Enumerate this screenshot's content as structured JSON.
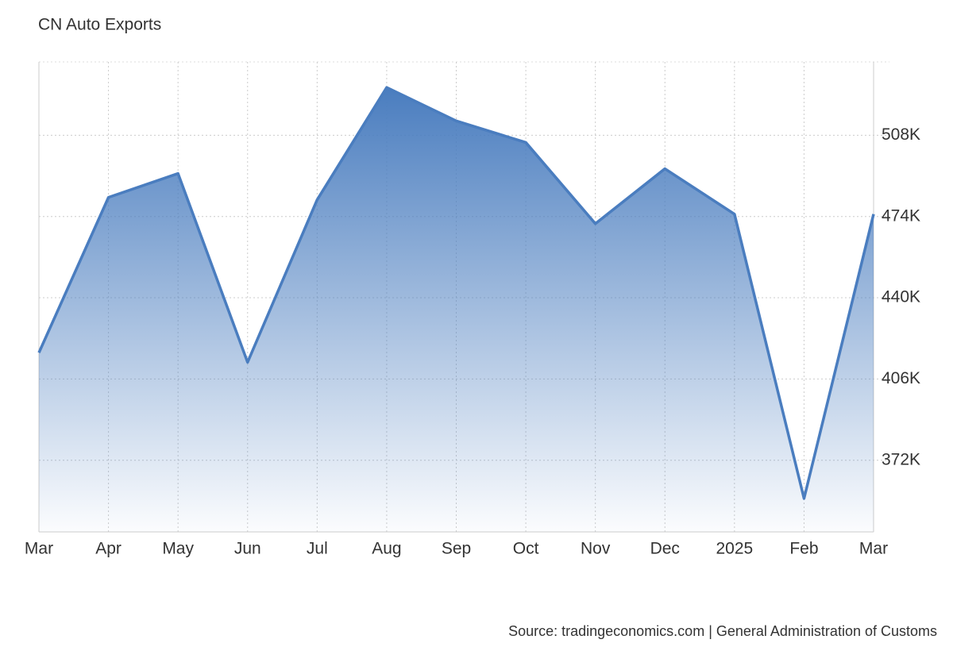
{
  "chart_data": {
    "type": "area",
    "title": "CN Auto Exports",
    "source": "Source: tradingeconomics.com | General Administration of Customs",
    "categories": [
      "Mar",
      "Apr",
      "May",
      "Jun",
      "Jul",
      "Aug",
      "Sep",
      "Oct",
      "Nov",
      "Dec",
      "2025",
      "Feb",
      "Mar"
    ],
    "values": [
      417000,
      482000,
      492000,
      413000,
      481000,
      528000,
      514000,
      505000,
      471000,
      494000,
      475000,
      356000,
      475000
    ],
    "color": "#4a7dbf",
    "ylim": [
      342000,
      538700
    ],
    "yticks": [
      {
        "value": 372000,
        "label": "372K"
      },
      {
        "value": 406000,
        "label": "406K"
      },
      {
        "value": 440000,
        "label": "440K"
      },
      {
        "value": 474000,
        "label": "474K"
      },
      {
        "value": 508000,
        "label": "508K"
      }
    ],
    "grid": true
  }
}
